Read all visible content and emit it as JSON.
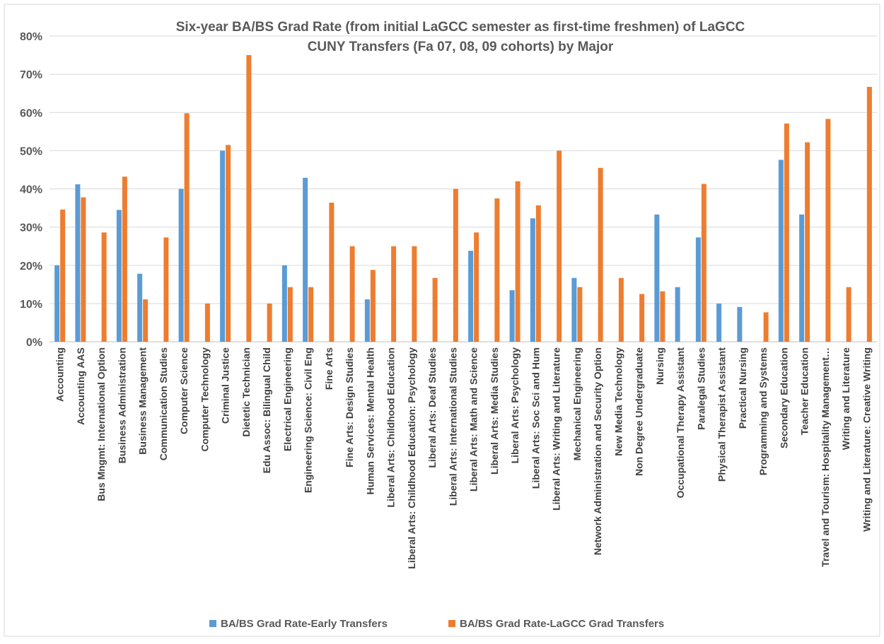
{
  "chart_data": {
    "type": "bar",
    "title_lines": [
      "Six-year BA/BS Grad Rate (from initial LaGCC semester as first-time freshmen) of LaGCC",
      "CUNY Transfers (Fa 07, 08, 09 cohorts) by Major"
    ],
    "xlabel": "",
    "ylabel": "",
    "ylim": [
      0,
      80
    ],
    "y_ticks": [
      "0%",
      "10%",
      "20%",
      "30%",
      "40%",
      "50%",
      "60%",
      "70%",
      "80%"
    ],
    "grid": true,
    "legend_position": "bottom",
    "categories": [
      "Accounting",
      "Accounting AAS",
      "Bus Mngmt: International Option",
      "Business Administration",
      "Business Management",
      "Communication Studies",
      "Computer Science",
      "Computer Technology",
      "Criminal Justice",
      "Dietetic Technician",
      "Edu Assoc: Bilingual Child",
      "Electrical Engineering",
      "Engineering Science: Civil Eng",
      "Fine Arts",
      "Fine Arts: Design Studies",
      "Human Services: Mental Health",
      "Liberal Arts: Childhood Education",
      "Liberal Arts: Childhood Education: Psychology",
      "Liberal Arts: Deaf Studies",
      "Liberal Arts: International Studies",
      "Liberal Arts: Math and Science",
      "Liberal Arts: Media Studies",
      "Liberal Arts: Psychology",
      "Liberal Arts: Soc Sci and Hum",
      "Liberal Arts: Writing and Literature",
      "Mechanical Engineering",
      "Network Administration and Security Option",
      "New Media Technology",
      "Non Degree Undergraduate",
      "Nursing",
      "Occupational Therapy Assistant",
      "Paralegal Studies",
      "Physical Therapist Assistant",
      "Practical Nursing",
      "Programming and Systems",
      "Secondary Education",
      "Teacher Education",
      "Travel and Tourism: Hospitality Management…",
      "Writing and Literature",
      "Writing and Literature: Creative Writing"
    ],
    "series": [
      {
        "name": "BA/BS Grad Rate-Early Transfers",
        "color": "#5B9BD5",
        "values": [
          20,
          41.2,
          0,
          34.5,
          17.8,
          0,
          40,
          0,
          50,
          0,
          0,
          20,
          42.9,
          0,
          0,
          11.1,
          0,
          0,
          0,
          0,
          23.8,
          0,
          13.5,
          32.3,
          0,
          16.7,
          0,
          0,
          0,
          33.3,
          14.3,
          27.3,
          10,
          9.1,
          0,
          47.6,
          33.3,
          0,
          0,
          0
        ]
      },
      {
        "name": "BA/BS Grad Rate-LaGCC Grad Transfers",
        "color": "#ED7D31",
        "values": [
          34.6,
          37.8,
          28.6,
          43.2,
          11.1,
          27.3,
          59.8,
          10,
          51.5,
          75,
          10,
          14.3,
          14.3,
          36.4,
          25,
          18.8,
          25,
          25,
          16.7,
          40,
          28.6,
          37.5,
          42,
          35.7,
          50,
          14.3,
          45.5,
          16.7,
          12.5,
          13.2,
          0,
          41.3,
          0,
          0,
          7.7,
          57.1,
          52.2,
          58.3,
          14.3,
          66.7
        ]
      }
    ]
  }
}
